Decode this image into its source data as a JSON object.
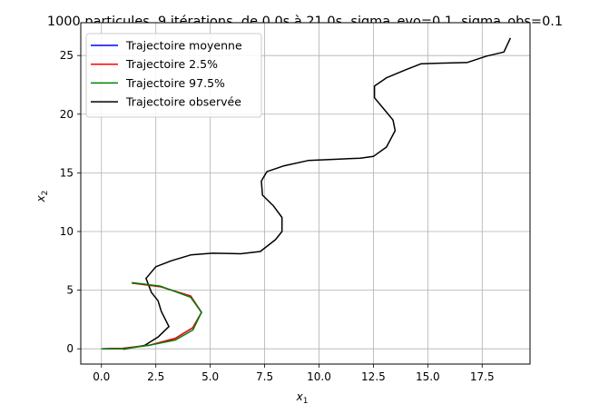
{
  "chart_data": {
    "type": "line",
    "title": "1000 particules, 9 itérations, de 0.0s à 21.0s, sigma_evo=0.1, sigma_obs=0.1",
    "xlabel": "x",
    "xlabel_sub": "1",
    "ylabel": "x",
    "ylabel_sub": "2",
    "xlim": [
      -0.95,
      19.7
    ],
    "ylim": [
      -1.3,
      27.8
    ],
    "xticks": [
      0.0,
      2.5,
      5.0,
      7.5,
      10.0,
      12.5,
      15.0,
      17.5
    ],
    "xtick_labels": [
      "0.0",
      "2.5",
      "5.0",
      "7.5",
      "10.0",
      "12.5",
      "15.0",
      "17.5"
    ],
    "yticks": [
      0,
      5,
      10,
      15,
      20,
      25
    ],
    "ytick_labels": [
      "0",
      "5",
      "10",
      "15",
      "20",
      "25"
    ],
    "grid": true,
    "legend_position": "top-left",
    "series": [
      {
        "name": "Trajectoire moyenne",
        "color": "#0000ff",
        "x": [
          0.0,
          1.0,
          2.2,
          3.4,
          4.2,
          4.6,
          4.1,
          2.7,
          1.4
        ],
        "y": [
          0.0,
          0.05,
          0.3,
          0.9,
          1.8,
          3.1,
          4.5,
          5.3,
          5.6
        ]
      },
      {
        "name": "Trajectoire 2.5%",
        "color": "#ff0000",
        "x": [
          0.0,
          1.0,
          2.2,
          3.4,
          4.2,
          4.6,
          4.1,
          2.7,
          1.4
        ],
        "y": [
          0.0,
          0.05,
          0.3,
          0.9,
          1.8,
          3.1,
          4.5,
          5.3,
          5.6
        ]
      },
      {
        "name": "Trajectoire 97.5%",
        "color": "#008000",
        "x": [
          0.0,
          1.0,
          2.2,
          3.4,
          4.2,
          4.6,
          4.1,
          2.7,
          1.4
        ],
        "y": [
          0.0,
          0.0,
          0.3,
          0.75,
          1.6,
          3.1,
          4.4,
          5.35,
          5.65
        ]
      },
      {
        "name": "Trajectoire observée",
        "color": "#000000",
        "x": [
          1.0,
          2.0,
          2.6,
          3.1,
          2.75,
          2.6,
          2.3,
          2.05,
          2.5,
          3.2,
          4.1,
          5.1,
          6.4,
          7.3,
          8.0,
          8.3,
          8.3,
          7.9,
          7.4,
          7.35,
          7.6,
          8.4,
          9.5,
          10.7,
          11.9,
          12.5,
          13.1,
          13.5,
          13.4,
          13.0,
          12.55,
          12.55,
          13.1,
          14.0,
          14.7,
          15.5,
          16.8,
          17.7,
          18.5,
          18.8
        ],
        "y": [
          -0.05,
          0.3,
          1.0,
          1.9,
          3.2,
          4.1,
          4.8,
          6.0,
          7.0,
          7.5,
          8.0,
          8.15,
          8.1,
          8.3,
          9.3,
          10.0,
          11.2,
          12.2,
          13.1,
          14.3,
          15.1,
          15.6,
          16.05,
          16.15,
          16.25,
          16.4,
          17.2,
          18.6,
          19.5,
          20.4,
          21.4,
          22.4,
          23.1,
          23.8,
          24.3,
          24.35,
          24.4,
          24.95,
          25.3,
          26.5
        ]
      }
    ]
  }
}
